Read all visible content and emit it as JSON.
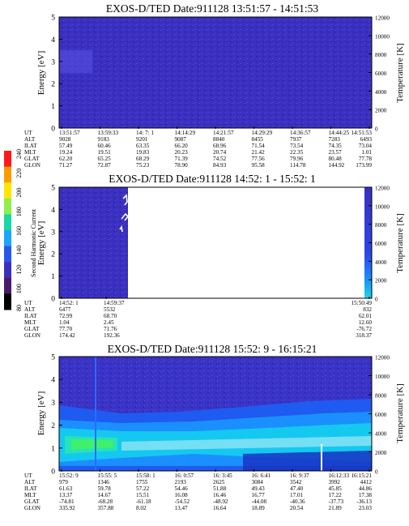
{
  "colorbar": {
    "label": "Second Harmonic Current",
    "ticks": [
      "80",
      "100",
      "120",
      "140",
      "160",
      "180",
      "200",
      "220",
      "240"
    ]
  },
  "row_labels": [
    "UT",
    "ALT",
    "ILAT",
    "MLT",
    "GLAT",
    "GLON"
  ],
  "chart_data": [
    {
      "type": "heatmap",
      "title": "EXOS-D/TED   Date:911128  13:51:57 - 14:51:53",
      "ylabel": "Energy [eV]",
      "y2label": "Temperature [K]",
      "ylim": [
        0,
        5
      ],
      "y2lim": [
        0,
        12000
      ],
      "yticks": [
        "0",
        "1",
        "2",
        "3",
        "4",
        "5"
      ],
      "y2ticks": [
        "0",
        "2000",
        "4000",
        "6000",
        "8000",
        "10000",
        "12000"
      ],
      "columns": [
        {
          "UT": "13:51:57",
          "ALT": "9028",
          "ILAT": "57.49",
          "MLT": "19.24",
          "GLAT": "62.20",
          "GLON": "71.27"
        },
        {
          "UT": "13:59:33",
          "ALT": "9183",
          "ILAT": "60.46",
          "MLT": "19.51",
          "GLAT": "65.25",
          "GLON": "72.87"
        },
        {
          "UT": "14: 7: 1",
          "ALT": "9201",
          "ILAT": "63.35",
          "MLT": "19.83",
          "GLAT": "68.29",
          "GLON": "75.23"
        },
        {
          "UT": "14:14:29",
          "ALT": "9087",
          "ILAT": "66.20",
          "MLT": "20.23",
          "GLAT": "71.39",
          "GLON": "78.90"
        },
        {
          "UT": "14:21:57",
          "ALT": "8840",
          "ILAT": "68.96",
          "MLT": "20.74",
          "GLAT": "74.52",
          "GLON": "84.93"
        },
        {
          "UT": "14:29:29",
          "ALT": "8455",
          "ILAT": "71.54",
          "MLT": "21.42",
          "GLAT": "77.56",
          "GLON": "95.58"
        },
        {
          "UT": "14:36:57",
          "ALT": "7937",
          "ILAT": "73.54",
          "MLT": "22.35",
          "GLAT": "79.96",
          "GLON": "114.78"
        },
        {
          "UT": "14:44:25",
          "ALT": "7283",
          "ILAT": "74.35",
          "MLT": "23.57",
          "GLAT": "80.48",
          "GLON": "144.92"
        },
        {
          "UT": "14:51:53",
          "ALT": "6493",
          "ILAT": "73.04",
          "MLT": "1.01",
          "GLAT": "77.78",
          "GLON": "173.99"
        }
      ]
    },
    {
      "type": "heatmap",
      "title": "EXOS-D/TED   Date:911128  14:52: 1 - 15:52: 1",
      "ylabel": "Energy [eV]",
      "y2label": "Temperature [K]",
      "ylim": [
        0,
        5
      ],
      "y2lim": [
        0,
        12000
      ],
      "yticks": [
        "0",
        "1",
        "2",
        "3",
        "4",
        "5"
      ],
      "y2ticks": [
        "0",
        "2000",
        "4000",
        "6000",
        "8000",
        "10000",
        "12000"
      ],
      "columns": [
        {
          "UT": "14:52: 1",
          "ALT": "6477",
          "ILAT": "72.99",
          "MLT": "1.04",
          "GLAT": "77.70",
          "GLON": "174.42"
        },
        {
          "UT": "14:59:37",
          "ALT": "5532",
          "ILAT": "68.70",
          "MLT": "2.45",
          "GLAT": "71.76",
          "GLON": "192.36"
        },
        {
          "UT": "15:50:49",
          "ALT": "832",
          "ILAT": "62.01",
          "MLT": "12.60",
          "GLAT": "-76.72",
          "GLON": "318.37"
        }
      ]
    },
    {
      "type": "heatmap",
      "title": "EXOS-D/TED   Date:911128  15:52: 9 - 16:15:21",
      "ylabel": "Energy [eV]",
      "y2label": "Temperature [K]",
      "ylim": [
        0,
        5
      ],
      "y2lim": [
        0,
        12000
      ],
      "yticks": [
        "0",
        "1",
        "2",
        "3",
        "4",
        "5"
      ],
      "y2ticks": [
        "0",
        "2000",
        "4000",
        "6000",
        "8000",
        "10000",
        "12000"
      ],
      "columns": [
        {
          "UT": "15:52: 9",
          "ALT": "979",
          "ILAT": "61.63",
          "MLT": "13.37",
          "GLAT": "-74.81",
          "GLON": "335.92"
        },
        {
          "UT": "15:55: 5",
          "ALT": "1346",
          "ILAT": "59.78",
          "MLT": "14.67",
          "GLAT": "-68.28",
          "GLON": "357.88"
        },
        {
          "UT": "15:58: 1",
          "ALT": "1755",
          "ILAT": "57.22",
          "MLT": "15.51",
          "GLAT": "-61.18",
          "GLON": "8.02"
        },
        {
          "UT": "16: 0:57",
          "ALT": "2193",
          "ILAT": "54.46",
          "MLT": "16.08",
          "GLAT": "-54.52",
          "GLON": "13.47"
        },
        {
          "UT": "16: 3:45",
          "ALT": "2625",
          "ILAT": "51.88",
          "MLT": "16.46",
          "GLAT": "-48.92",
          "GLON": "16.64"
        },
        {
          "UT": "16: 6:41",
          "ALT": "3084",
          "ILAT": "49.43",
          "MLT": "16.77",
          "GLAT": "-44.08",
          "GLON": "18.89"
        },
        {
          "UT": "16: 9:37",
          "ALT": "3542",
          "ILAT": "47.40",
          "MLT": "17.01",
          "GLAT": "-40.36",
          "GLON": "20.54"
        },
        {
          "UT": "16:12:33",
          "ALT": "3992",
          "ILAT": "45.85",
          "MLT": "17.22",
          "GLAT": "-37.73",
          "GLON": "21.89"
        },
        {
          "UT": "16:15:21",
          "ALT": "4412",
          "ILAT": "44.86",
          "MLT": "17.38",
          "GLAT": "-36.13",
          "GLON": "23.03"
        }
      ]
    }
  ]
}
